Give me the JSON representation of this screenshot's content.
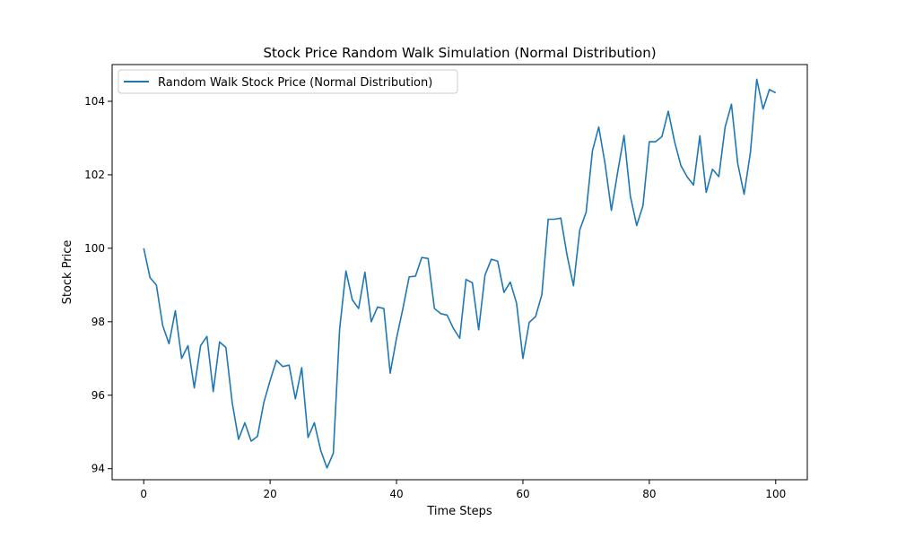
{
  "chart_data": {
    "type": "line",
    "title": "Stock Price Random Walk Simulation (Normal Distribution)",
    "xlabel": "Time Steps",
    "ylabel": "Stock Price",
    "xlim": [
      -5,
      105
    ],
    "ylim": [
      93.7,
      105.0
    ],
    "xticks": [
      0,
      20,
      40,
      60,
      80,
      100
    ],
    "yticks": [
      94,
      96,
      98,
      100,
      102,
      104
    ],
    "grid": false,
    "legend": "top-left",
    "series": [
      {
        "name": "Random Walk Stock Price (Normal Distribution)",
        "color": "#1f77b4",
        "x": [
          0,
          1,
          2,
          3,
          4,
          5,
          6,
          7,
          8,
          9,
          10,
          11,
          12,
          13,
          14,
          15,
          16,
          17,
          18,
          19,
          20,
          21,
          22,
          23,
          24,
          25,
          26,
          27,
          28,
          29,
          30,
          31,
          32,
          33,
          34,
          35,
          36,
          37,
          38,
          39,
          40,
          41,
          42,
          43,
          44,
          45,
          46,
          47,
          48,
          49,
          50,
          51,
          52,
          53,
          54,
          55,
          56,
          57,
          58,
          59,
          60,
          61,
          62,
          63,
          64,
          65,
          66,
          67,
          68,
          69,
          70,
          71,
          72,
          73,
          74,
          75,
          76,
          77,
          78,
          79,
          80,
          81,
          82,
          83,
          84,
          85,
          86,
          87,
          88,
          89,
          90,
          91,
          92,
          93,
          94,
          95,
          96,
          97,
          98,
          99,
          100
        ],
        "values": [
          100.0,
          99.2,
          99.0,
          97.9,
          97.4,
          98.3,
          97.0,
          97.35,
          96.2,
          97.35,
          97.6,
          96.1,
          97.45,
          97.3,
          95.8,
          94.8,
          95.25,
          94.75,
          94.88,
          95.8,
          96.4,
          96.95,
          96.78,
          96.82,
          95.9,
          96.75,
          94.85,
          95.25,
          94.5,
          94.02,
          94.42,
          97.8,
          99.38,
          98.6,
          98.36,
          99.35,
          98.0,
          98.4,
          98.36,
          96.6,
          97.55,
          98.35,
          99.22,
          99.24,
          99.75,
          99.72,
          98.36,
          98.22,
          98.18,
          97.82,
          97.55,
          99.15,
          99.06,
          97.78,
          99.27,
          99.7,
          99.65,
          98.8,
          99.08,
          98.5,
          97.0,
          97.98,
          98.14,
          98.74,
          100.79,
          100.79,
          100.82,
          99.8,
          98.98,
          100.5,
          100.98,
          102.65,
          103.3,
          102.3,
          101.03,
          102.08,
          103.07,
          101.42,
          100.62,
          101.16,
          102.9,
          102.9,
          103.04,
          103.73,
          102.9,
          102.25,
          101.94,
          101.72,
          103.06,
          101.52,
          102.15,
          101.95,
          103.3,
          103.92,
          102.3,
          101.47,
          102.61,
          104.6,
          103.79,
          104.32,
          104.23
        ]
      }
    ]
  }
}
